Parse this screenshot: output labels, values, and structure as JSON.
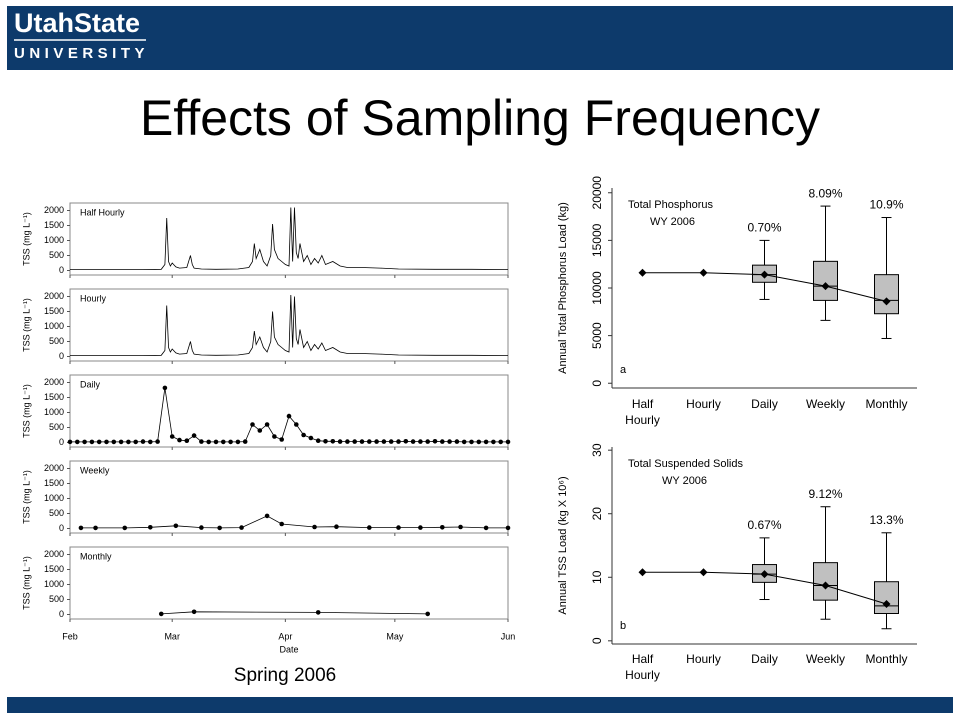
{
  "header": {
    "logo_line1": "UtahState",
    "logo_line2": "UNIVERSITY"
  },
  "title": "Effects of Sampling Frequency",
  "caption": "Spring 2006",
  "chart_data": [
    {
      "type": "line",
      "label": "Half Hourly",
      "ylabel": "TSS (mg L⁻¹)",
      "markers": false,
      "color": "#000000",
      "x": [
        0,
        10,
        20,
        25,
        26,
        26.5,
        27,
        27.5,
        28,
        29,
        30,
        32,
        33,
        33.5,
        34,
        36,
        40,
        46,
        49,
        50,
        50.5,
        51,
        52,
        53,
        54,
        55,
        55.5,
        56,
        57,
        58,
        59,
        60,
        60.5,
        61,
        61.5,
        62,
        62.5,
        63,
        64,
        65,
        66,
        67,
        68,
        69,
        70,
        72,
        74,
        76,
        80,
        85,
        90,
        100,
        110,
        120
      ],
      "values": [
        30,
        30,
        30,
        40,
        200,
        1750,
        300,
        150,
        250,
        120,
        80,
        100,
        500,
        200,
        80,
        50,
        40,
        50,
        100,
        300,
        900,
        400,
        700,
        300,
        150,
        500,
        1550,
        700,
        400,
        300,
        200,
        150,
        2100,
        300,
        2100,
        600,
        400,
        900,
        300,
        500,
        200,
        400,
        250,
        500,
        200,
        300,
        150,
        100,
        100,
        80,
        50,
        40,
        40,
        30
      ],
      "xlim": [
        0,
        120
      ],
      "xticks": [
        0,
        28,
        59,
        89,
        120
      ],
      "ylim": [
        -150,
        2250
      ],
      "yticks": [
        0,
        500,
        1000,
        1500,
        2000
      ]
    },
    {
      "type": "line",
      "label": "Hourly",
      "ylabel": "TSS (mg L⁻¹)",
      "markers": false,
      "color": "#000000",
      "x": [
        0,
        10,
        20,
        25,
        26,
        26.5,
        27,
        27.5,
        28,
        29,
        30,
        32,
        33,
        33.5,
        34,
        36,
        40,
        46,
        49,
        50,
        50.5,
        51,
        52,
        53,
        54,
        55,
        55.5,
        56,
        57,
        58,
        59,
        60,
        60.5,
        61,
        61.5,
        62,
        62.5,
        63,
        64,
        65,
        66,
        67,
        68,
        69,
        70,
        72,
        74,
        76,
        80,
        85,
        90,
        100,
        110,
        120
      ],
      "values": [
        30,
        30,
        30,
        40,
        200,
        1700,
        300,
        150,
        250,
        120,
        80,
        100,
        500,
        200,
        80,
        50,
        40,
        50,
        100,
        300,
        850,
        400,
        650,
        300,
        150,
        500,
        1500,
        650,
        400,
        300,
        200,
        150,
        2050,
        300,
        2000,
        600,
        400,
        900,
        300,
        500,
        200,
        400,
        250,
        450,
        200,
        300,
        150,
        100,
        100,
        80,
        50,
        40,
        40,
        30
      ],
      "xlim": [
        0,
        120
      ],
      "xticks": [
        0,
        28,
        59,
        89,
        120
      ],
      "ylim": [
        -150,
        2250
      ],
      "yticks": [
        0,
        500,
        1000,
        1500,
        2000
      ]
    },
    {
      "type": "line",
      "label": "Daily",
      "ylabel": "TSS (mg L⁻¹)",
      "markers": true,
      "color": "#000000",
      "x": [
        0,
        2,
        4,
        6,
        8,
        10,
        12,
        14,
        16,
        18,
        20,
        22,
        24,
        26,
        28,
        30,
        32,
        34,
        36,
        38,
        40,
        42,
        44,
        46,
        48,
        50,
        52,
        54,
        56,
        58,
        60,
        62,
        64,
        66,
        68,
        70,
        72,
        74,
        76,
        78,
        80,
        82,
        84,
        86,
        88,
        90,
        92,
        94,
        96,
        98,
        100,
        102,
        104,
        106,
        108,
        110,
        112,
        114,
        116,
        118,
        120
      ],
      "values": [
        20,
        20,
        20,
        20,
        20,
        20,
        20,
        20,
        20,
        20,
        30,
        20,
        30,
        1820,
        200,
        80,
        60,
        230,
        30,
        20,
        20,
        20,
        20,
        20,
        30,
        600,
        400,
        600,
        200,
        100,
        880,
        600,
        250,
        150,
        60,
        40,
        40,
        30,
        30,
        30,
        30,
        30,
        30,
        30,
        30,
        30,
        40,
        30,
        30,
        30,
        40,
        30,
        30,
        30,
        20,
        20,
        20,
        20,
        20,
        20,
        20
      ],
      "xlim": [
        0,
        120
      ],
      "xticks": [
        0,
        28,
        59,
        89,
        120
      ],
      "ylim": [
        -150,
        2250
      ],
      "yticks": [
        0,
        500,
        1000,
        1500,
        2000
      ]
    },
    {
      "type": "line",
      "label": "Weekly",
      "ylabel": "TSS (mg L⁻¹)",
      "markers": true,
      "color": "#000000",
      "x": [
        3,
        7,
        15,
        22,
        29,
        36,
        41,
        47,
        54,
        58,
        67,
        73,
        82,
        90,
        96,
        102,
        107,
        114,
        120
      ],
      "values": [
        20,
        20,
        20,
        40,
        90,
        30,
        20,
        30,
        420,
        150,
        50,
        60,
        30,
        30,
        30,
        40,
        50,
        20,
        20
      ],
      "xlim": [
        0,
        120
      ],
      "xticks": [
        0,
        28,
        59,
        89,
        120
      ],
      "ylim": [
        -150,
        2250
      ],
      "yticks": [
        0,
        500,
        1000,
        1500,
        2000
      ]
    },
    {
      "type": "line",
      "label": "Monthly",
      "ylabel": "TSS (mg L⁻¹)",
      "xlabel": "Date",
      "markers": true,
      "color": "#000000",
      "x": [
        25,
        34,
        68,
        98
      ],
      "values": [
        20,
        90,
        70,
        20
      ],
      "xlim": [
        0,
        120
      ],
      "xticks": [
        {
          "value": 0,
          "label": "Feb"
        },
        {
          "value": 28,
          "label": "Mar"
        },
        {
          "value": 59,
          "label": "Apr"
        },
        {
          "value": 89,
          "label": "May"
        },
        {
          "value": 120,
          "label": "Jun"
        }
      ],
      "ylim": [
        -150,
        2250
      ],
      "yticks": [
        0,
        500,
        1000,
        1500,
        2000
      ]
    },
    {
      "type": "box",
      "annotation": [
        "Total Phosphorus",
        "WY 2006"
      ],
      "panel_letter": "a",
      "ylabel": "Annual Total Phosphorus Load (kg)",
      "categories": [
        "Half Hourly",
        "Hourly",
        "Daily",
        "Weekly",
        "Monthly"
      ],
      "values": [
        11600,
        11600,
        11400,
        10200,
        8600
      ],
      "boxes": [
        null,
        null,
        {
          "low": 8800,
          "q1": 10600,
          "median": 11400,
          "q3": 12400,
          "high": 15000
        },
        {
          "low": 6600,
          "q1": 8700,
          "median": 10200,
          "q3": 12800,
          "high": 18600
        },
        {
          "low": 4700,
          "q1": 7300,
          "median": 8700,
          "q3": 11400,
          "high": 17400
        }
      ],
      "cv_labels": [
        null,
        null,
        "0.70%",
        "8.09%",
        "10.9%"
      ],
      "box_color": "#c0c0c0",
      "ylim": [
        -500,
        20500
      ],
      "yticks": [
        0,
        5000,
        10000,
        15000,
        20000
      ]
    },
    {
      "type": "box",
      "annotation": [
        "Total Suspended Solids",
        "WY 2006"
      ],
      "panel_letter": "b",
      "ylabel": "Annual TSS Load (kg X 10⁶)",
      "categories": [
        "Half Hourly",
        "Hourly",
        "Daily",
        "Weekly",
        "Monthly"
      ],
      "values": [
        10.8,
        10.8,
        10.5,
        8.7,
        5.8
      ],
      "boxes": [
        null,
        null,
        {
          "low": 6.5,
          "q1": 9.2,
          "median": 10.5,
          "q3": 12,
          "high": 16.2
        },
        {
          "low": 3.4,
          "q1": 6.4,
          "median": 8.7,
          "q3": 12.3,
          "high": 21.1
        },
        {
          "low": 1.9,
          "q1": 4.3,
          "median": 5.5,
          "q3": 9.3,
          "high": 17
        }
      ],
      "cv_labels": [
        null,
        null,
        "0.67%",
        "9.12%",
        "13.3%"
      ],
      "box_color": "#c0c0c0",
      "ylim": [
        -0.5,
        30.5
      ],
      "yticks": [
        0,
        10,
        20,
        30
      ]
    }
  ]
}
